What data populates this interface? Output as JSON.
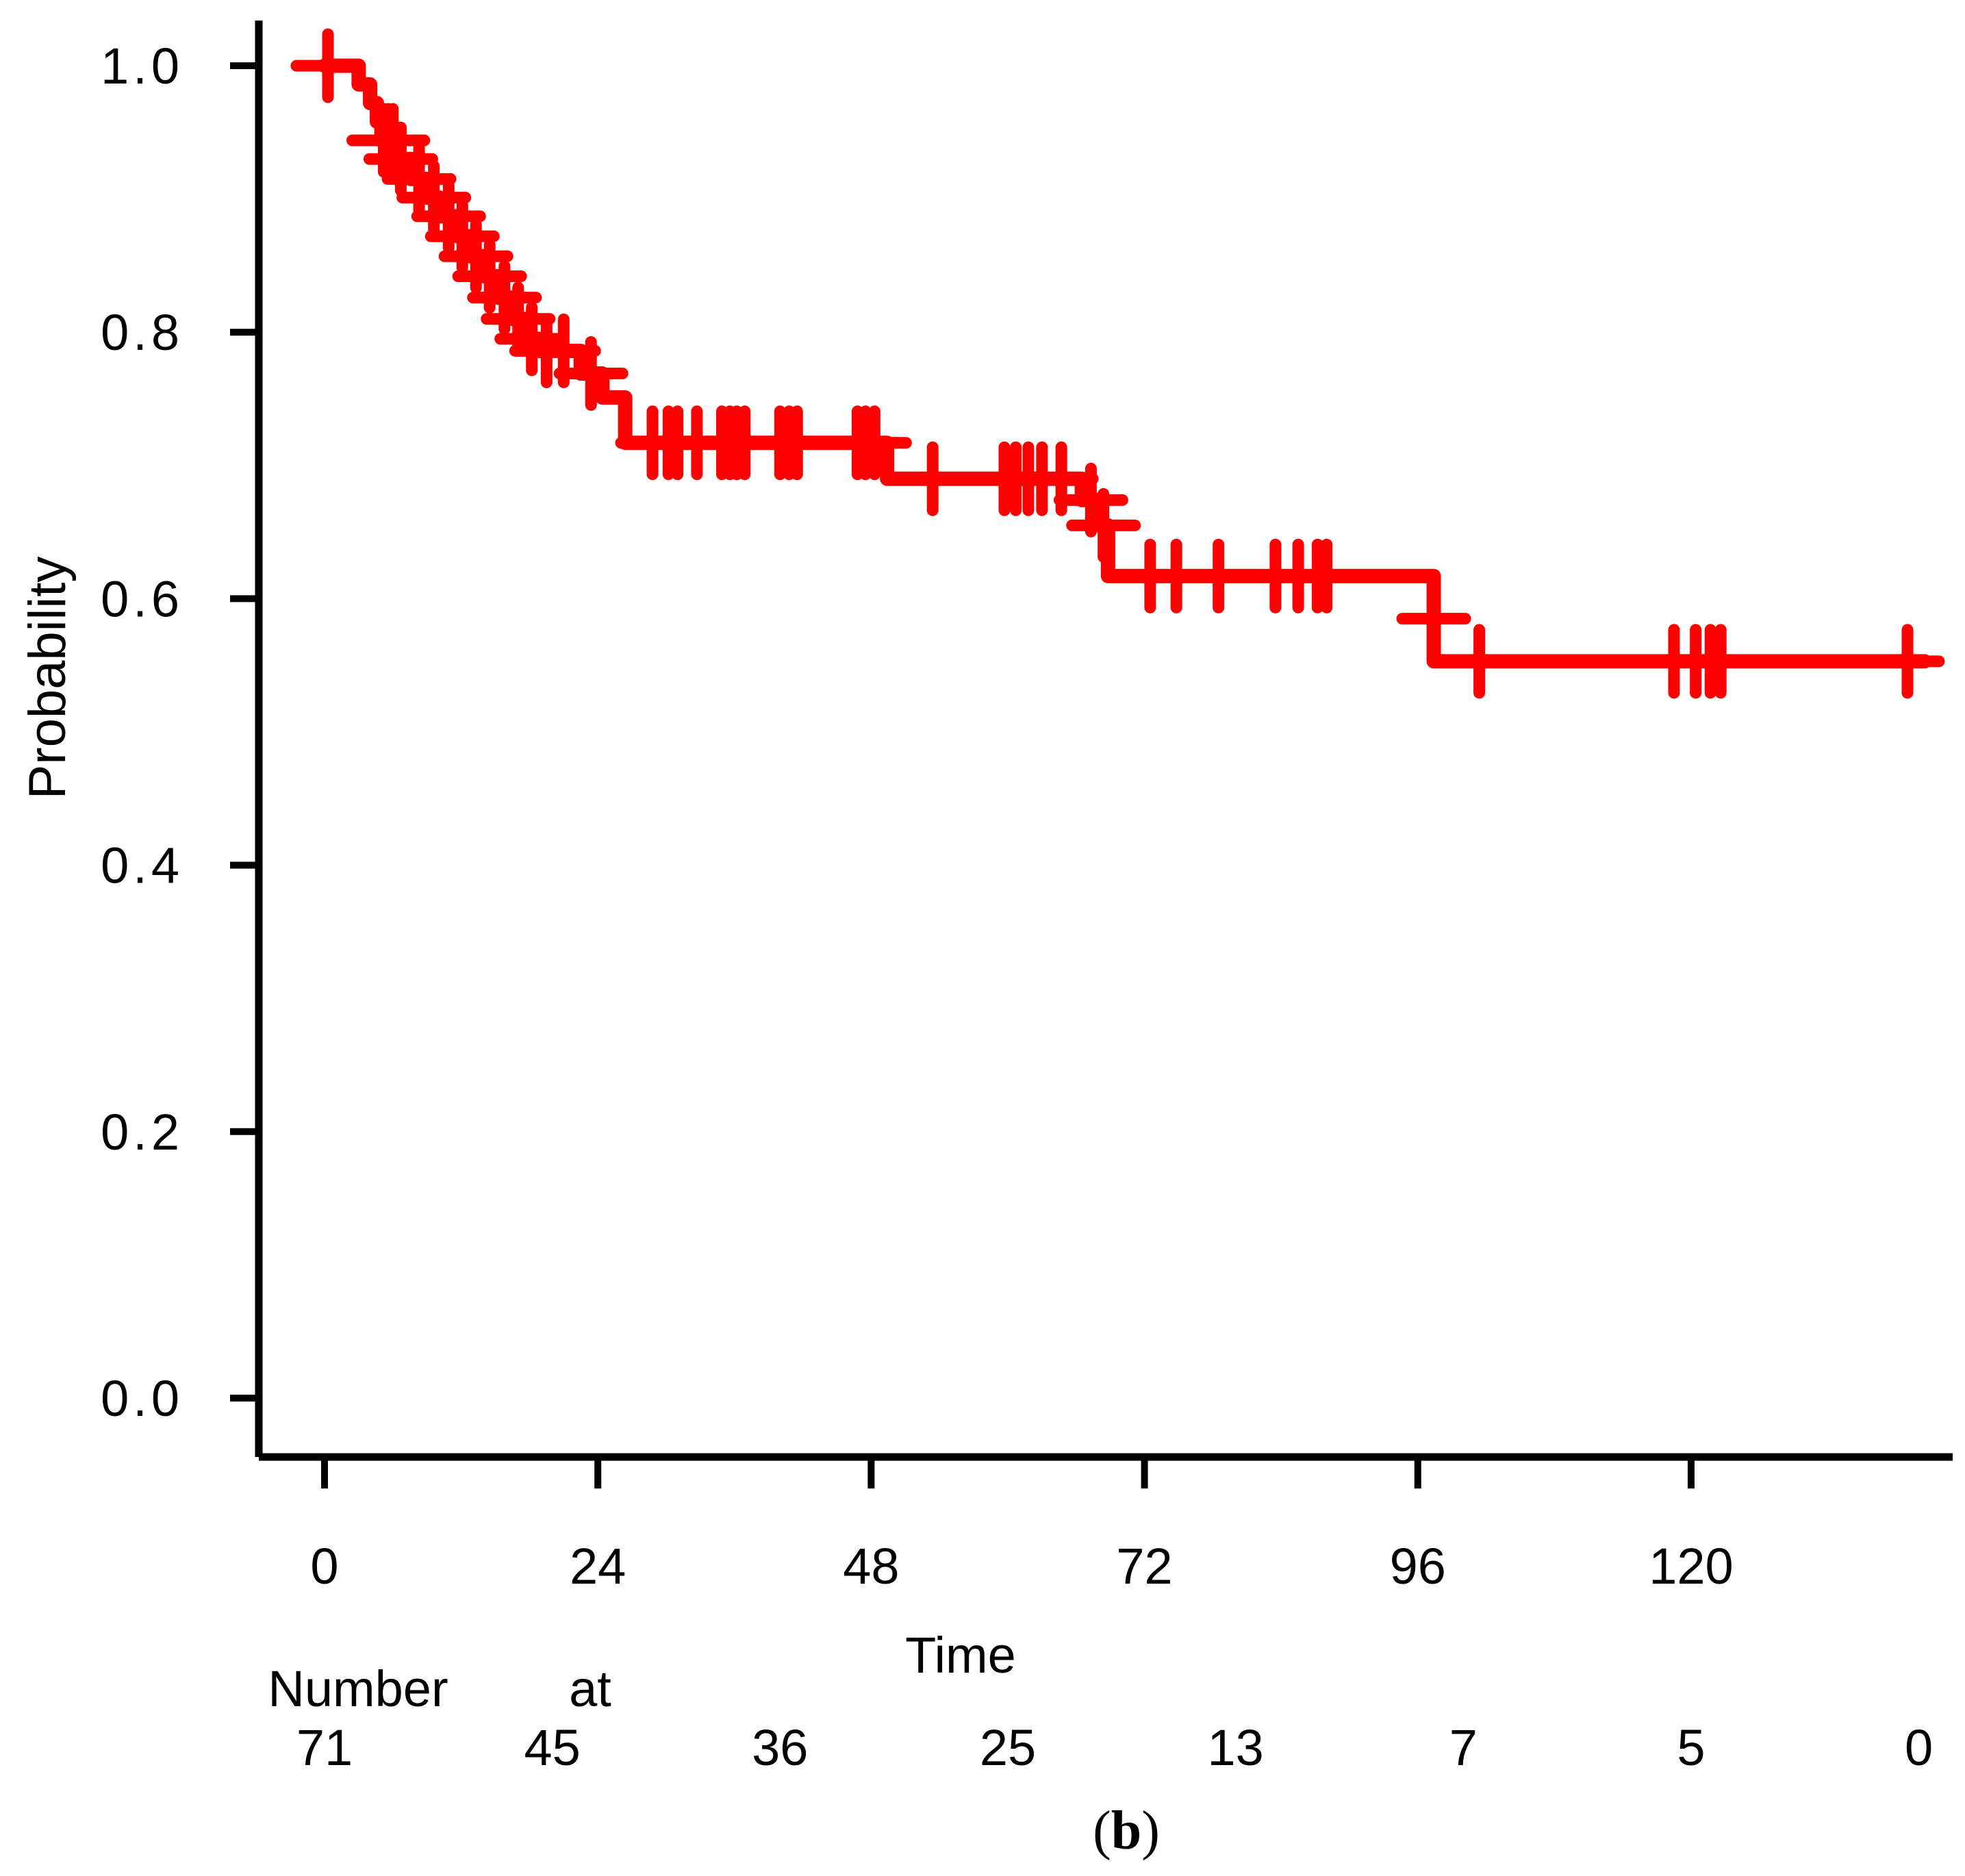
{
  "figure": {
    "background_color": "#FFFFFF",
    "caption": {
      "open": "(",
      "letter": "b",
      "close": ")"
    }
  },
  "chart_data": {
    "type": "line",
    "subtype": "kaplan-meier-step-curve",
    "title": "",
    "xlabel": "Time",
    "ylabel": "Probability",
    "grid": false,
    "legend": "none",
    "xlim": [
      0,
      142
    ],
    "ylim": [
      0.0,
      1.05
    ],
    "x_ticks": [
      0,
      24,
      48,
      72,
      96,
      120
    ],
    "y_ticks": [
      {
        "value": 1.0,
        "label": "1.0"
      },
      {
        "value": 0.8,
        "label": "0.8"
      },
      {
        "value": 0.6,
        "label": "0.6"
      },
      {
        "value": 0.4,
        "label": "0.4"
      },
      {
        "value": 0.2,
        "label": "0.2"
      },
      {
        "value": 0.0,
        "label": "0.0"
      }
    ],
    "series": [
      {
        "name": "survival-curve",
        "color": "#FF0000",
        "line_width": 21,
        "steps": [
          [
            0,
            1.0
          ],
          [
            3.0,
            0.986
          ],
          [
            4.0,
            0.972
          ],
          [
            4.6,
            0.958
          ],
          [
            5.0,
            0.944
          ],
          [
            6.4,
            0.93
          ],
          [
            7.6,
            0.915
          ],
          [
            9.0,
            0.901
          ],
          [
            10.1,
            0.887
          ],
          [
            11.7,
            0.872
          ],
          [
            12.8,
            0.857
          ],
          [
            14.0,
            0.842
          ],
          [
            15.2,
            0.826
          ],
          [
            16.5,
            0.81
          ],
          [
            17.8,
            0.795
          ],
          [
            18.8,
            0.786
          ],
          [
            22.5,
            0.769
          ],
          [
            24.4,
            0.751
          ],
          [
            26.4,
            0.717
          ],
          [
            49.4,
            0.69
          ],
          [
            66.5,
            0.674
          ],
          [
            68.0,
            0.655
          ],
          [
            68.8,
            0.617
          ],
          [
            97.4,
            0.553
          ]
        ],
        "end_time": 140.5,
        "censor_marks": [
          [
            0.3,
            1.0
          ],
          [
            5.2,
            0.944
          ],
          [
            5.6,
            0.944
          ],
          [
            6.0,
            0.944
          ],
          [
            6.7,
            0.93
          ],
          [
            8.3,
            0.915
          ],
          [
            9.6,
            0.901
          ],
          [
            10.9,
            0.887
          ],
          [
            12.1,
            0.872
          ],
          [
            13.3,
            0.857
          ],
          [
            14.5,
            0.842
          ],
          [
            15.8,
            0.826
          ],
          [
            17.0,
            0.81
          ],
          [
            18.2,
            0.795
          ],
          [
            19.5,
            0.786
          ],
          [
            21.0,
            0.786
          ],
          [
            23.4,
            0.769
          ],
          [
            28.8,
            0.717
          ],
          [
            30.2,
            0.717
          ],
          [
            31.0,
            0.717
          ],
          [
            32.7,
            0.717
          ],
          [
            34.9,
            0.717
          ],
          [
            35.6,
            0.717
          ],
          [
            36.2,
            0.717
          ],
          [
            36.9,
            0.717
          ],
          [
            40.0,
            0.717
          ],
          [
            40.8,
            0.717
          ],
          [
            41.5,
            0.717
          ],
          [
            46.8,
            0.717
          ],
          [
            47.5,
            0.717
          ],
          [
            48.3,
            0.717
          ],
          [
            53.4,
            0.69
          ],
          [
            59.7,
            0.69
          ],
          [
            60.7,
            0.69
          ],
          [
            61.8,
            0.69
          ],
          [
            63.0,
            0.69
          ],
          [
            64.7,
            0.69
          ],
          [
            67.3,
            0.674
          ],
          [
            68.4,
            0.655
          ],
          [
            72.5,
            0.617
          ],
          [
            74.8,
            0.617
          ],
          [
            78.5,
            0.617
          ],
          [
            83.5,
            0.617
          ],
          [
            85.5,
            0.617
          ],
          [
            87.2,
            0.617
          ],
          [
            88.0,
            0.617
          ],
          [
            97.4,
            0.585
          ],
          [
            101.4,
            0.553
          ],
          [
            118.5,
            0.553
          ],
          [
            120.4,
            0.553
          ],
          [
            121.7,
            0.553
          ],
          [
            122.6,
            0.553
          ],
          [
            139.0,
            0.553
          ]
        ]
      }
    ],
    "risk_table": {
      "label_words": [
        "Number",
        "at"
      ],
      "times": [
        0,
        20,
        40,
        60,
        80,
        100,
        120,
        140
      ],
      "counts": [
        "71",
        "45",
        "36",
        "25",
        "13",
        "7",
        "5",
        "0"
      ]
    },
    "axis_color": "#000000",
    "text_color": "#000000"
  }
}
